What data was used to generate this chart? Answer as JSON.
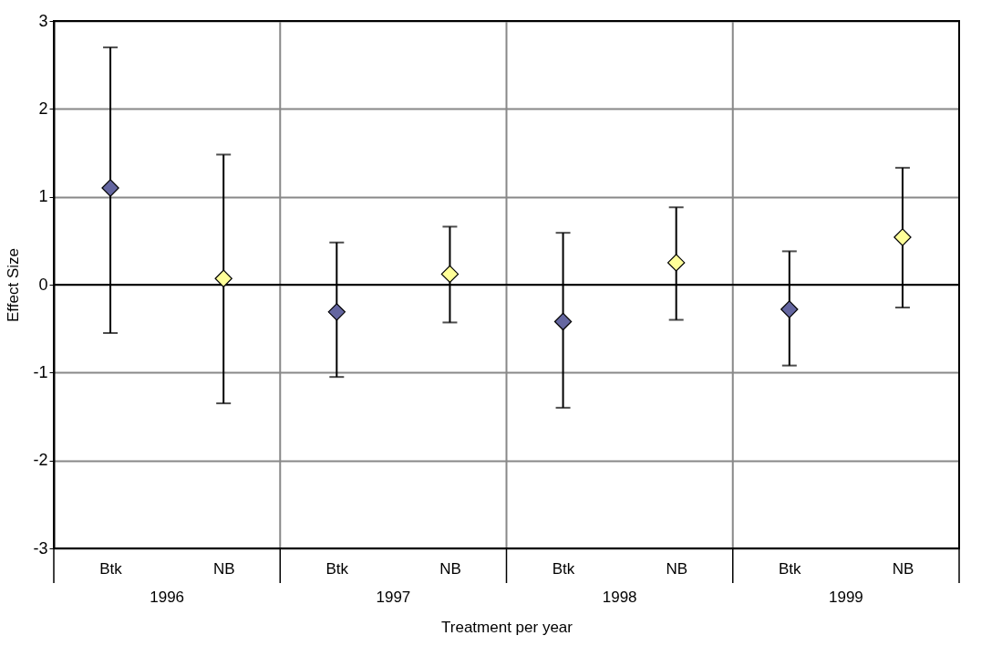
{
  "chart_data": {
    "type": "scatter",
    "xlabel": "Treatment per year",
    "ylabel": "Effect Size",
    "categories": [
      "Btk",
      "NB",
      "Btk",
      "NB",
      "Btk",
      "NB",
      "Btk",
      "NB"
    ],
    "values": [
      1.1,
      0.07,
      -0.31,
      0.12,
      -0.42,
      0.25,
      -0.28,
      0.54
    ],
    "errors": [
      [
        -0.55,
        2.7
      ],
      [
        -1.35,
        1.48
      ],
      [
        -1.05,
        0.48
      ],
      [
        -0.43,
        0.66
      ],
      [
        -1.4,
        0.59
      ],
      [
        -0.4,
        0.88
      ],
      [
        -0.92,
        0.38
      ],
      [
        -0.26,
        1.33
      ]
    ],
    "colors": [
      "#6466a0",
      "#ffff99",
      "#6466a0",
      "#ffff99",
      "#6466a0",
      "#ffff99",
      "#6466a0",
      "#ffff99"
    ],
    "annotations": [
      "1996",
      "1997",
      "1998",
      "1999"
    ],
    "ylim": [
      -3,
      3
    ],
    "yticks": [
      -3,
      -2,
      -1,
      0,
      1,
      2,
      3
    ],
    "ref_lines": [
      {
        "axis": "y",
        "value": 0,
        "color": "#000000"
      }
    ],
    "grid": true,
    "marker": "diamond"
  }
}
